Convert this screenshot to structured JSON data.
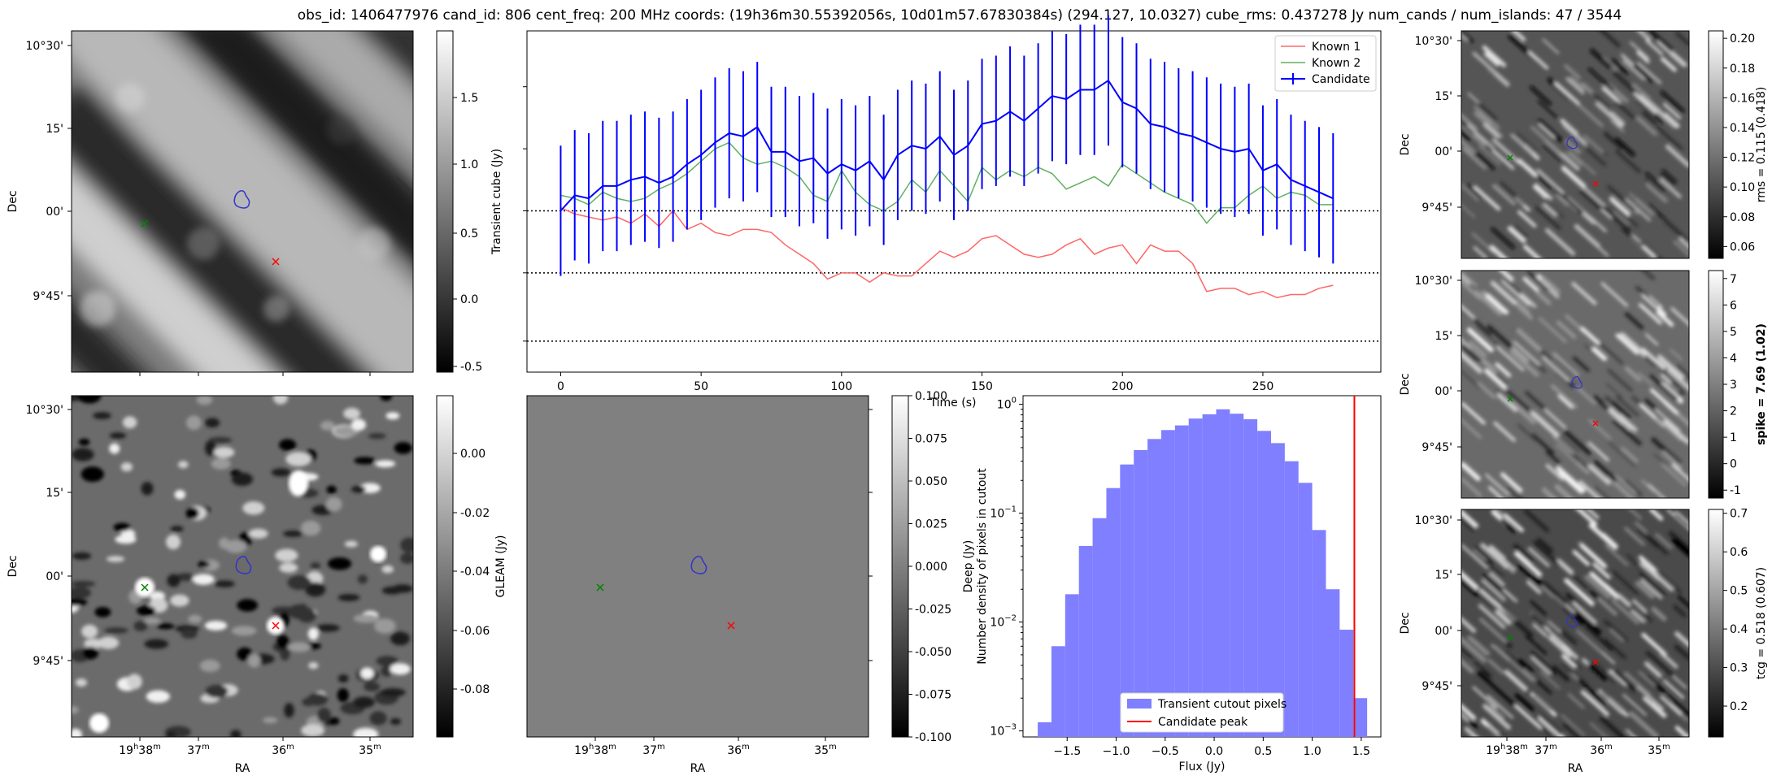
{
  "figure": {
    "title": "obs_id: 1406477976 cand_id: 806 cent_freq: 200 MHz coords: (19h36m30.55392056s, 10d01m57.67830384s) (294.127, 10.0327) cube_rms: 0.437278 Jy num_cands / num_islands: 47 / 3544"
  },
  "image_axes": {
    "ra_label": "RA",
    "dec_label": "Dec",
    "dec_ticks": [
      "10°30'",
      "15'",
      "00'",
      "9°45'"
    ],
    "ra_tick_first_hours": "19",
    "ra_tick_first_minutes": "38",
    "ra_ticks_minutes": [
      "37",
      "36",
      "35"
    ],
    "ra_tick_superscript_h": "h",
    "ra_tick_superscript_m": "m"
  },
  "markers": {
    "known1_color": "#008000",
    "known2_color": "#ff0000",
    "candidate_contour_color": "#3333cc"
  },
  "panels": {
    "transient": {
      "colorbar_label": "Transient cube (Jy)",
      "colorbar_ticks": [
        "1.5",
        "1.0",
        "0.5",
        "0.0",
        "-0.5"
      ],
      "colormap": "gray"
    },
    "gleam": {
      "colorbar_label": "GLEAM (Jy)",
      "colorbar_ticks": [
        "0.00",
        "-0.02",
        "-0.04",
        "-0.06",
        "-0.08"
      ],
      "colormap": "gray"
    },
    "deep": {
      "colorbar_label": "Deep (Jy)",
      "colorbar_ticks": [
        "0.100",
        "0.075",
        "0.050",
        "0.025",
        "0.000",
        "-0.025",
        "-0.050",
        "-0.075",
        "-0.100"
      ],
      "fill_color": "#808080"
    },
    "rms": {
      "colorbar_label": "rms = 0.115 (0.418)",
      "colorbar_ticks": [
        "0.20",
        "0.18",
        "0.16",
        "0.14",
        "0.12",
        "0.10",
        "0.08",
        "0.06"
      ]
    },
    "spike": {
      "colorbar_label": "spike = 7.69 (1.02)",
      "colorbar_ticks": [
        "7",
        "6",
        "5",
        "4",
        "3",
        "2",
        "1",
        "0",
        "-1"
      ]
    },
    "tcg": {
      "colorbar_label": "tcg = 0.518 (0.607)",
      "colorbar_ticks": [
        "0.7",
        "0.6",
        "0.5",
        "0.4",
        "0.3",
        "0.2"
      ]
    }
  },
  "chart_data": [
    {
      "type": "line",
      "xlabel": "Time (s)",
      "ylabel": "",
      "xlim": [
        -12,
        292
      ],
      "ylim": [
        -0.1,
        1.0
      ],
      "xticks": [
        "0",
        "50",
        "100",
        "150",
        "200",
        "250"
      ],
      "hlines": [
        0.42,
        0.22,
        0.0
      ],
      "legend_position": "top-right",
      "series": [
        {
          "name": "Known 1",
          "color": "#ff6666",
          "x": [
            0,
            5,
            10,
            15,
            20,
            25,
            30,
            35,
            40,
            45,
            50,
            55,
            60,
            65,
            70,
            75,
            80,
            85,
            90,
            95,
            100,
            105,
            110,
            115,
            120,
            125,
            130,
            135,
            140,
            145,
            150,
            155,
            160,
            165,
            170,
            175,
            180,
            185,
            190,
            195,
            200,
            205,
            210,
            215,
            220,
            225,
            230,
            235,
            240,
            245,
            250,
            255,
            260,
            265,
            270,
            275
          ],
          "y": [
            0.43,
            0.41,
            0.4,
            0.39,
            0.4,
            0.38,
            0.41,
            0.37,
            0.42,
            0.36,
            0.38,
            0.35,
            0.34,
            0.36,
            0.36,
            0.35,
            0.31,
            0.28,
            0.25,
            0.2,
            0.22,
            0.22,
            0.19,
            0.22,
            0.21,
            0.21,
            0.25,
            0.29,
            0.27,
            0.29,
            0.33,
            0.34,
            0.31,
            0.28,
            0.27,
            0.28,
            0.31,
            0.33,
            0.28,
            0.3,
            0.31,
            0.25,
            0.31,
            0.29,
            0.29,
            0.25,
            0.16,
            0.17,
            0.17,
            0.15,
            0.16,
            0.14,
            0.15,
            0.15,
            0.17,
            0.18
          ]
        },
        {
          "name": "Known 2",
          "color": "#5fb05f",
          "x": [
            0,
            5,
            10,
            15,
            20,
            25,
            30,
            35,
            40,
            45,
            50,
            55,
            60,
            65,
            70,
            75,
            80,
            85,
            90,
            95,
            100,
            105,
            110,
            115,
            120,
            125,
            130,
            135,
            140,
            145,
            150,
            155,
            160,
            165,
            170,
            175,
            180,
            185,
            190,
            195,
            200,
            205,
            210,
            215,
            220,
            225,
            230,
            235,
            240,
            245,
            250,
            255,
            260,
            265,
            270,
            275
          ],
          "y": [
            0.47,
            0.46,
            0.44,
            0.48,
            0.46,
            0.45,
            0.46,
            0.49,
            0.51,
            0.54,
            0.58,
            0.62,
            0.64,
            0.59,
            0.57,
            0.58,
            0.56,
            0.53,
            0.47,
            0.45,
            0.55,
            0.48,
            0.44,
            0.42,
            0.45,
            0.52,
            0.48,
            0.55,
            0.5,
            0.45,
            0.56,
            0.52,
            0.55,
            0.53,
            0.56,
            0.54,
            0.49,
            0.51,
            0.53,
            0.5,
            0.57,
            0.54,
            0.51,
            0.48,
            0.46,
            0.44,
            0.38,
            0.43,
            0.43,
            0.47,
            0.5,
            0.46,
            0.48,
            0.47,
            0.44,
            0.44
          ]
        },
        {
          "name": "Candidate",
          "color": "#0000ff",
          "x": [
            0,
            5,
            10,
            15,
            20,
            25,
            30,
            35,
            40,
            45,
            50,
            55,
            60,
            65,
            70,
            75,
            80,
            85,
            90,
            95,
            100,
            105,
            110,
            115,
            120,
            125,
            130,
            135,
            140,
            145,
            150,
            155,
            160,
            165,
            170,
            175,
            180,
            185,
            190,
            195,
            200,
            205,
            210,
            215,
            220,
            225,
            230,
            235,
            240,
            245,
            250,
            255,
            260,
            265,
            270,
            275
          ],
          "y": [
            0.42,
            0.47,
            0.46,
            0.5,
            0.5,
            0.52,
            0.53,
            0.51,
            0.53,
            0.57,
            0.6,
            0.64,
            0.67,
            0.66,
            0.69,
            0.61,
            0.61,
            0.58,
            0.59,
            0.54,
            0.57,
            0.55,
            0.58,
            0.52,
            0.6,
            0.63,
            0.62,
            0.66,
            0.6,
            0.63,
            0.7,
            0.71,
            0.74,
            0.71,
            0.75,
            0.79,
            0.78,
            0.81,
            0.81,
            0.84,
            0.77,
            0.75,
            0.7,
            0.69,
            0.67,
            0.66,
            0.64,
            0.62,
            0.61,
            0.62,
            0.55,
            0.57,
            0.52,
            0.5,
            0.48,
            0.46
          ],
          "yerr": 0.21
        }
      ]
    },
    {
      "type": "bar",
      "xlabel": "Flux (Jy)",
      "ylabel": "Number density of pixels in cutout",
      "xlim": [
        -1.95,
        1.7
      ],
      "ylog": true,
      "ylim": [
        0.00088,
        1.2
      ],
      "xticks": [
        "−1.5",
        "−1.0",
        "−0.5",
        "0.0",
        "0.5",
        "1.0",
        "1.5"
      ],
      "yticks_exponents": [
        "0",
        "-1",
        "-2",
        "-3"
      ],
      "ytick_base": "10",
      "bin_edges": [
        -1.8,
        -1.66,
        -1.52,
        -1.38,
        -1.24,
        -1.1,
        -0.96,
        -0.82,
        -0.68,
        -0.54,
        -0.4,
        -0.26,
        -0.12,
        0.02,
        0.16,
        0.3,
        0.44,
        0.58,
        0.72,
        0.86,
        1.0,
        1.14,
        1.28,
        1.42,
        1.56
      ],
      "values": [
        0.0012,
        0.006,
        0.018,
        0.05,
        0.09,
        0.17,
        0.28,
        0.38,
        0.48,
        0.58,
        0.64,
        0.74,
        0.81,
        0.9,
        0.82,
        0.73,
        0.57,
        0.44,
        0.3,
        0.19,
        0.07,
        0.02,
        0.0085,
        0.002
      ],
      "hist_color": "#7f7fff",
      "vline": 1.43,
      "vline_color": "#ff0000",
      "legend_position": "lower-center",
      "legend": [
        "Transient cutout pixels",
        "Candidate peak"
      ]
    }
  ]
}
